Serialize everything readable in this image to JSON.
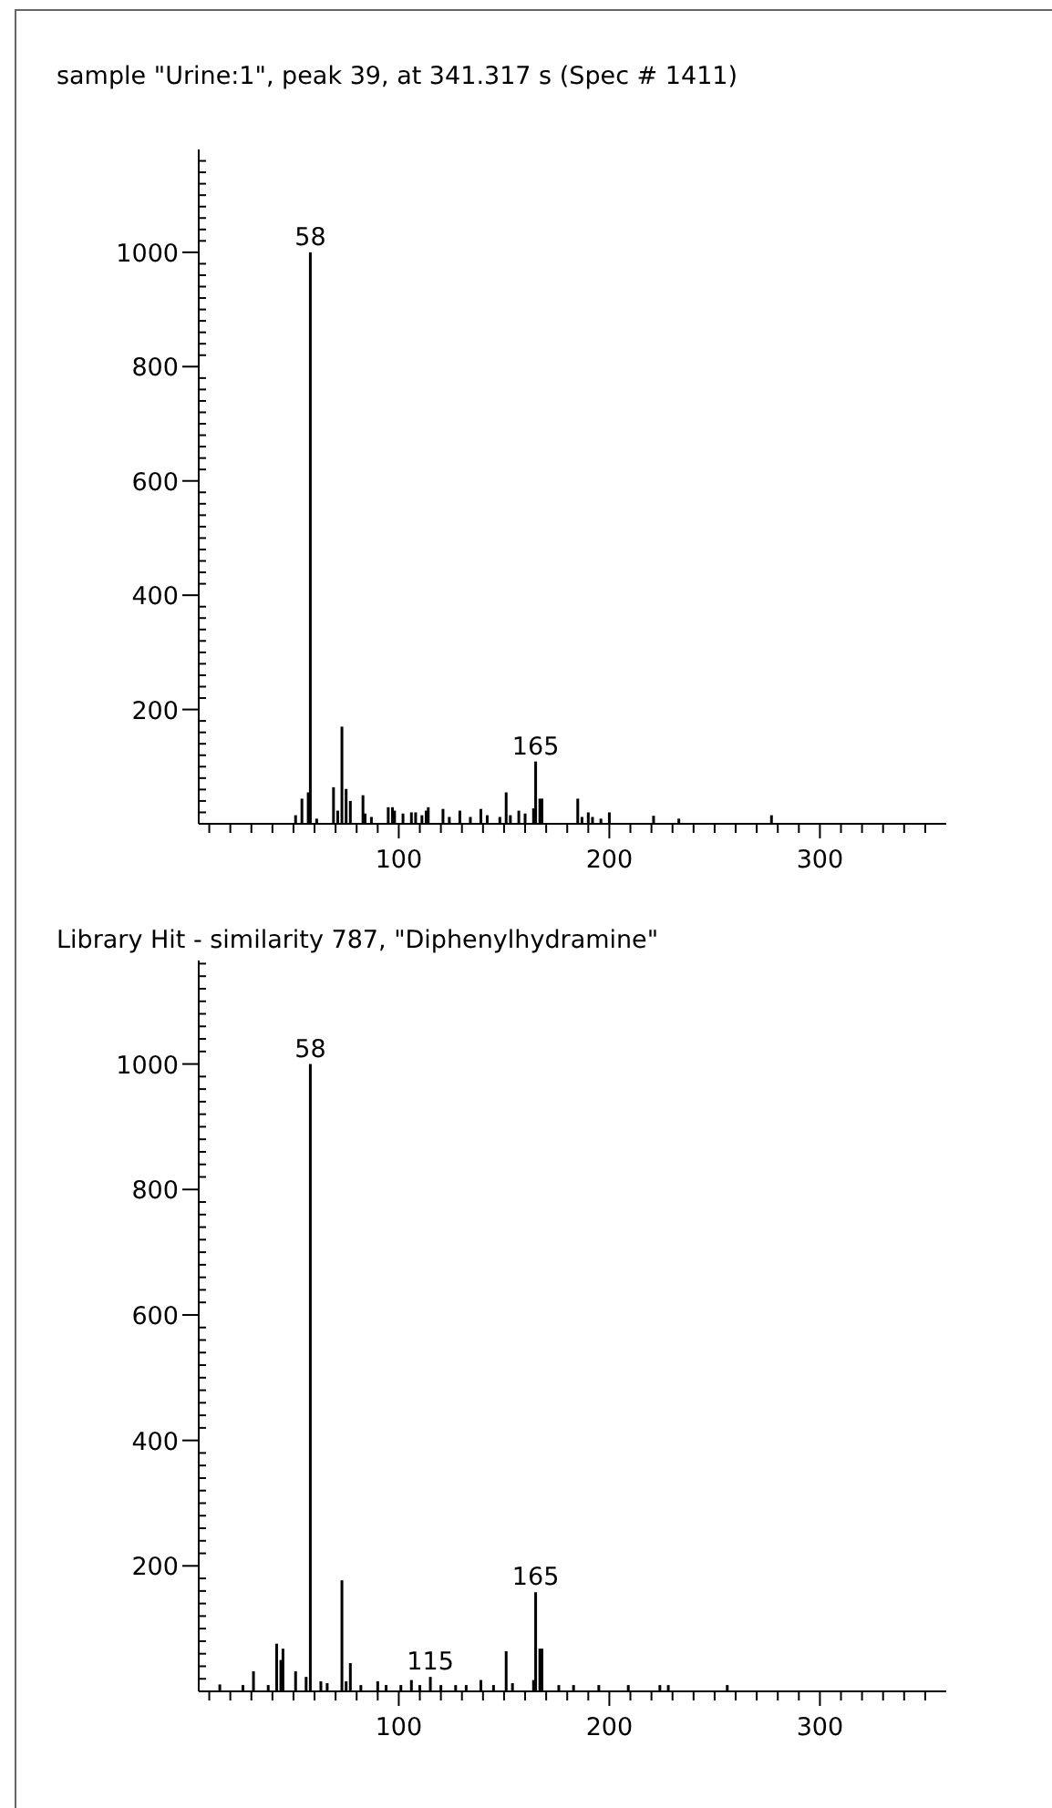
{
  "chart_data": [
    {
      "type": "bar",
      "title": "sample \"Urine:1\", peak 39, at 341.317 s (Spec # 1411)",
      "x": [
        51,
        54,
        57,
        58,
        61,
        69,
        71,
        73,
        75,
        77,
        83,
        84,
        87,
        95,
        97,
        98,
        102,
        106,
        108,
        111,
        113,
        114,
        121,
        124,
        129,
        134,
        139,
        142,
        148,
        151,
        153,
        157,
        160,
        164,
        165,
        167,
        168,
        185,
        187,
        190,
        192,
        196,
        200,
        221,
        233,
        277
      ],
      "series": [
        {
          "color": "#000000",
          "values": [
            15,
            44,
            55,
            1000,
            9,
            64,
            23,
            170,
            61,
            40,
            50,
            18,
            12,
            29,
            29,
            23,
            18,
            20,
            20,
            15,
            23,
            29,
            26,
            12,
            23,
            12,
            26,
            15,
            12,
            55,
            15,
            23,
            18,
            27,
            109,
            44,
            44,
            44,
            12,
            20,
            12,
            9,
            20,
            14,
            9,
            15
          ]
        }
      ],
      "annotations": [
        {
          "text": "58",
          "x": 58,
          "y": 1000
        },
        {
          "text": "165",
          "x": 165,
          "y": 109
        }
      ],
      "xlim": [
        5,
        360
      ],
      "ylim": [
        0,
        1180
      ],
      "xticks": [
        {
          "value": 10,
          "label": null
        },
        {
          "value": 20,
          "label": null
        },
        {
          "value": 30,
          "label": null
        },
        {
          "value": 40,
          "label": null
        },
        {
          "value": 50,
          "label": null
        },
        {
          "value": 60,
          "label": null
        },
        {
          "value": 70,
          "label": null
        },
        {
          "value": 80,
          "label": null
        },
        {
          "value": 90,
          "label": null
        },
        100,
        {
          "value": 110,
          "label": null
        },
        {
          "value": 120,
          "label": null
        },
        {
          "value": 130,
          "label": null
        },
        {
          "value": 140,
          "label": null
        },
        {
          "value": 150,
          "label": null
        },
        {
          "value": 160,
          "label": null
        },
        {
          "value": 170,
          "label": null
        },
        {
          "value": 180,
          "label": null
        },
        {
          "value": 190,
          "label": null
        },
        200,
        {
          "value": 210,
          "label": null
        },
        {
          "value": 220,
          "label": null
        },
        {
          "value": 230,
          "label": null
        },
        {
          "value": 240,
          "label": null
        },
        {
          "value": 250,
          "label": null
        },
        {
          "value": 260,
          "label": null
        },
        {
          "value": 270,
          "label": null
        },
        {
          "value": 280,
          "label": null
        },
        {
          "value": 290,
          "label": null
        },
        300,
        {
          "value": 310,
          "label": null
        },
        {
          "value": 320,
          "label": null
        },
        {
          "value": 330,
          "label": null
        },
        {
          "value": 340,
          "label": null
        },
        {
          "value": 350,
          "label": null
        }
      ],
      "yticks": [
        {
          "value": 20,
          "label": null
        },
        {
          "value": 40,
          "label": null
        },
        {
          "value": 60,
          "label": null
        },
        {
          "value": 80,
          "label": null
        },
        {
          "value": 100,
          "label": null
        },
        {
          "value": 120,
          "label": null
        },
        {
          "value": 140,
          "label": null
        },
        {
          "value": 160,
          "label": null
        },
        {
          "value": 180,
          "label": null
        },
        200,
        {
          "value": 220,
          "label": null
        },
        {
          "value": 240,
          "label": null
        },
        {
          "value": 260,
          "label": null
        },
        {
          "value": 280,
          "label": null
        },
        {
          "value": 300,
          "label": null
        },
        {
          "value": 320,
          "label": null
        },
        {
          "value": 340,
          "label": null
        },
        {
          "value": 360,
          "label": null
        },
        {
          "value": 380,
          "label": null
        },
        400,
        {
          "value": 420,
          "label": null
        },
        {
          "value": 440,
          "label": null
        },
        {
          "value": 460,
          "label": null
        },
        {
          "value": 480,
          "label": null
        },
        {
          "value": 500,
          "label": null
        },
        {
          "value": 520,
          "label": null
        },
        {
          "value": 540,
          "label": null
        },
        {
          "value": 560,
          "label": null
        },
        {
          "value": 580,
          "label": null
        },
        600,
        {
          "value": 620,
          "label": null
        },
        {
          "value": 640,
          "label": null
        },
        {
          "value": 660,
          "label": null
        },
        {
          "value": 680,
          "label": null
        },
        {
          "value": 700,
          "label": null
        },
        {
          "value": 720,
          "label": null
        },
        {
          "value": 740,
          "label": null
        },
        {
          "value": 760,
          "label": null
        },
        {
          "value": 780,
          "label": null
        },
        800,
        {
          "value": 820,
          "label": null
        },
        {
          "value": 840,
          "label": null
        },
        {
          "value": 860,
          "label": null
        },
        {
          "value": 880,
          "label": null
        },
        {
          "value": 900,
          "label": null
        },
        {
          "value": 920,
          "label": null
        },
        {
          "value": 940,
          "label": null
        },
        {
          "value": 960,
          "label": null
        },
        {
          "value": 980,
          "label": null
        },
        1000,
        {
          "value": 1020,
          "label": null
        },
        {
          "value": 1040,
          "label": null
        },
        {
          "value": 1060,
          "label": null
        },
        {
          "value": 1080,
          "label": null
        },
        {
          "value": 1100,
          "label": null
        },
        {
          "value": 1120,
          "label": null
        },
        {
          "value": 1140,
          "label": null
        },
        {
          "value": 1160,
          "label": null
        }
      ]
    },
    {
      "type": "bar",
      "title": "Library Hit - similarity 787, \"Diphenylhydramine\"",
      "x": [
        15,
        26,
        31,
        38,
        42,
        44,
        45,
        51,
        56,
        58,
        63,
        66,
        73,
        75,
        77,
        82,
        90,
        94,
        101,
        106,
        110,
        115,
        120,
        127,
        132,
        139,
        145,
        151,
        154,
        164,
        165,
        167,
        168,
        176,
        183,
        195,
        209,
        224,
        228,
        256
      ],
      "series": [
        {
          "color": "#000000",
          "values": [
            11,
            10,
            32,
            10,
            76,
            50,
            68,
            32,
            23,
            1000,
            16,
            13,
            177,
            16,
            45,
            10,
            16,
            10,
            10,
            18,
            10,
            23,
            10,
            10,
            10,
            18,
            10,
            64,
            13,
            18,
            158,
            68,
            68,
            10,
            10,
            10,
            10,
            10,
            10,
            10
          ]
        }
      ],
      "annotations": [
        {
          "text": "58",
          "x": 58,
          "y": 1000
        },
        {
          "text": "165",
          "x": 165,
          "y": 158
        },
        {
          "text": "115",
          "x": 115,
          "y": 23
        }
      ],
      "xlim": [
        5,
        360
      ],
      "ylim": [
        0,
        1165
      ],
      "xticks": [
        {
          "value": 10,
          "label": null
        },
        {
          "value": 20,
          "label": null
        },
        {
          "value": 30,
          "label": null
        },
        {
          "value": 40,
          "label": null
        },
        {
          "value": 50,
          "label": null
        },
        {
          "value": 60,
          "label": null
        },
        {
          "value": 70,
          "label": null
        },
        {
          "value": 80,
          "label": null
        },
        {
          "value": 90,
          "label": null
        },
        100,
        {
          "value": 110,
          "label": null
        },
        {
          "value": 120,
          "label": null
        },
        {
          "value": 130,
          "label": null
        },
        {
          "value": 140,
          "label": null
        },
        {
          "value": 150,
          "label": null
        },
        {
          "value": 160,
          "label": null
        },
        {
          "value": 170,
          "label": null
        },
        {
          "value": 180,
          "label": null
        },
        {
          "value": 190,
          "label": null
        },
        200,
        {
          "value": 210,
          "label": null
        },
        {
          "value": 220,
          "label": null
        },
        {
          "value": 230,
          "label": null
        },
        {
          "value": 240,
          "label": null
        },
        {
          "value": 250,
          "label": null
        },
        {
          "value": 260,
          "label": null
        },
        {
          "value": 270,
          "label": null
        },
        {
          "value": 280,
          "label": null
        },
        {
          "value": 290,
          "label": null
        },
        300,
        {
          "value": 310,
          "label": null
        },
        {
          "value": 320,
          "label": null
        },
        {
          "value": 330,
          "label": null
        },
        {
          "value": 340,
          "label": null
        },
        {
          "value": 350,
          "label": null
        }
      ],
      "yticks": [
        {
          "value": 20,
          "label": null
        },
        {
          "value": 40,
          "label": null
        },
        {
          "value": 60,
          "label": null
        },
        {
          "value": 80,
          "label": null
        },
        {
          "value": 100,
          "label": null
        },
        {
          "value": 120,
          "label": null
        },
        {
          "value": 140,
          "label": null
        },
        {
          "value": 160,
          "label": null
        },
        {
          "value": 180,
          "label": null
        },
        200,
        {
          "value": 220,
          "label": null
        },
        {
          "value": 240,
          "label": null
        },
        {
          "value": 260,
          "label": null
        },
        {
          "value": 280,
          "label": null
        },
        {
          "value": 300,
          "label": null
        },
        {
          "value": 320,
          "label": null
        },
        {
          "value": 340,
          "label": null
        },
        {
          "value": 360,
          "label": null
        },
        {
          "value": 380,
          "label": null
        },
        400,
        {
          "value": 420,
          "label": null
        },
        {
          "value": 440,
          "label": null
        },
        {
          "value": 460,
          "label": null
        },
        {
          "value": 480,
          "label": null
        },
        {
          "value": 500,
          "label": null
        },
        {
          "value": 520,
          "label": null
        },
        {
          "value": 540,
          "label": null
        },
        {
          "value": 560,
          "label": null
        },
        {
          "value": 580,
          "label": null
        },
        600,
        {
          "value": 620,
          "label": null
        },
        {
          "value": 640,
          "label": null
        },
        {
          "value": 660,
          "label": null
        },
        {
          "value": 680,
          "label": null
        },
        {
          "value": 700,
          "label": null
        },
        {
          "value": 720,
          "label": null
        },
        {
          "value": 740,
          "label": null
        },
        {
          "value": 760,
          "label": null
        },
        {
          "value": 780,
          "label": null
        },
        800,
        {
          "value": 820,
          "label": null
        },
        {
          "value": 840,
          "label": null
        },
        {
          "value": 860,
          "label": null
        },
        {
          "value": 880,
          "label": null
        },
        {
          "value": 900,
          "label": null
        },
        {
          "value": 920,
          "label": null
        },
        {
          "value": 940,
          "label": null
        },
        {
          "value": 960,
          "label": null
        },
        {
          "value": 980,
          "label": null
        },
        1000,
        {
          "value": 1020,
          "label": null
        },
        {
          "value": 1040,
          "label": null
        },
        {
          "value": 1060,
          "label": null
        },
        {
          "value": 1080,
          "label": null
        },
        {
          "value": 1100,
          "label": null
        },
        {
          "value": 1120,
          "label": null
        },
        {
          "value": 1140,
          "label": null
        },
        {
          "value": 1160,
          "label": null
        }
      ]
    }
  ]
}
